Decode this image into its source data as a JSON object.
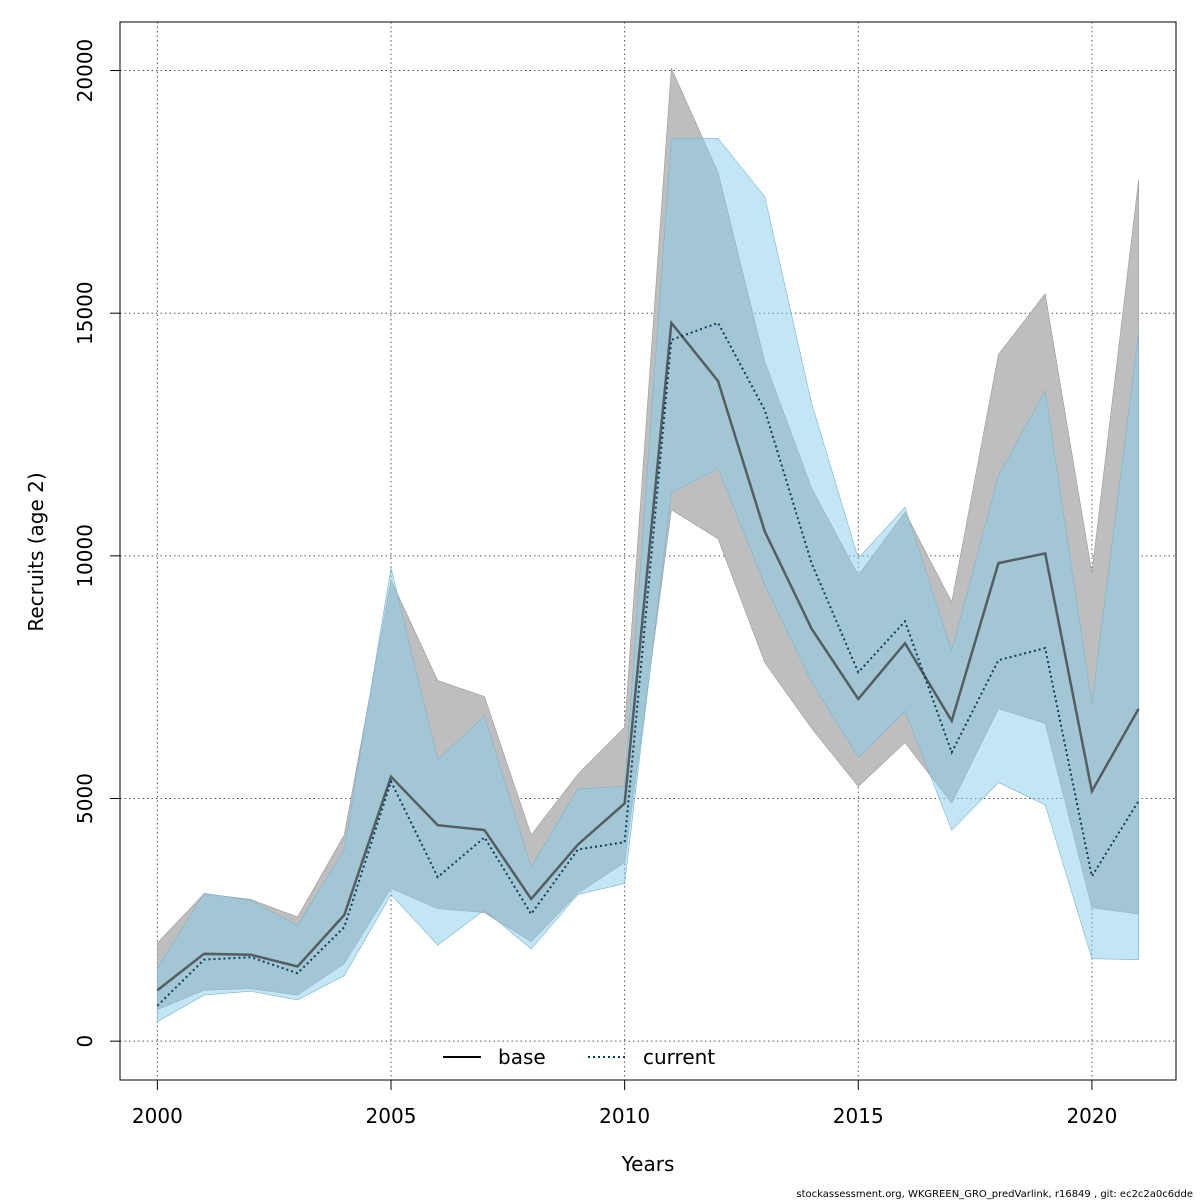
{
  "chart_data": {
    "type": "line",
    "title": "",
    "xlabel": "Years",
    "ylabel": "Recruits (age 2)",
    "xlim": [
      1999.2,
      2021.8
    ],
    "ylim": [
      -800,
      21000
    ],
    "x_ticks": [
      2000,
      2005,
      2010,
      2015,
      2020
    ],
    "y_ticks": [
      0,
      5000,
      10000,
      15000,
      20000
    ],
    "grid": true,
    "legend_position": "bottom",
    "x": [
      2000,
      2001,
      2002,
      2003,
      2004,
      2005,
      2006,
      2007,
      2008,
      2009,
      2010,
      2011,
      2012,
      2013,
      2014,
      2015,
      2016,
      2017,
      2018,
      2019,
      2020,
      2021
    ],
    "series": [
      {
        "name": "base",
        "line_style": "solid",
        "color": "#3a3a3a",
        "band_color": "#bebebe",
        "values": [
          1050,
          1800,
          1780,
          1540,
          2600,
          5450,
          4450,
          4350,
          2930,
          4050,
          4900,
          14800,
          13600,
          10500,
          8500,
          7050,
          8200,
          6600,
          9850,
          10050,
          5150,
          6850
        ],
        "lower": [
          650,
          1050,
          1080,
          950,
          1600,
          3150,
          2730,
          2650,
          2050,
          3050,
          3680,
          10950,
          10350,
          7800,
          6450,
          5250,
          6150,
          4900,
          6850,
          6550,
          2750,
          2620
        ],
        "upper": [
          2020,
          3040,
          2920,
          2560,
          4250,
          9500,
          7430,
          7100,
          4250,
          5500,
          6470,
          20050,
          17900,
          14000,
          11400,
          9600,
          10900,
          9050,
          14150,
          15400,
          9650,
          17750
        ]
      },
      {
        "name": "current",
        "line_style": "dotted",
        "color": "#0b3d5c",
        "band_color": "#87ceeb",
        "values": [
          730,
          1680,
          1730,
          1400,
          2350,
          5350,
          3380,
          4200,
          2620,
          3950,
          4100,
          14450,
          14800,
          13000,
          9850,
          7600,
          8650,
          5950,
          7850,
          8100,
          3400,
          4950
        ],
        "lower": [
          400,
          950,
          1030,
          850,
          1350,
          3020,
          1980,
          2700,
          1900,
          3020,
          3250,
          11300,
          11800,
          9400,
          7400,
          5850,
          6800,
          4350,
          5330,
          4870,
          1700,
          1680
        ],
        "upper": [
          1500,
          3050,
          2900,
          2380,
          3950,
          9750,
          5800,
          6700,
          3580,
          5200,
          5250,
          18600,
          18600,
          17400,
          13150,
          9950,
          11000,
          8050,
          11650,
          13400,
          6950,
          14600
        ]
      }
    ]
  },
  "footer": {
    "text": "stockassessment.org, WKGREEN_GRO_predVarlink, r16849 , git: ec2c2a0c6dde"
  }
}
